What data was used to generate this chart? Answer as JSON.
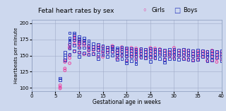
{
  "title": "Fetal heart rates by sex",
  "legend_girls": "Girls",
  "legend_boys": "Boys",
  "xlabel": "Gestational age in weeks",
  "ylabel": "Heartbeats per minute",
  "xlim": [
    0,
    40
  ],
  "ylim": [
    95,
    205
  ],
  "xticks": [
    0,
    5,
    10,
    15,
    20,
    25,
    30,
    35,
    40
  ],
  "yticks": [
    100,
    125,
    150,
    175,
    200
  ],
  "bg_color": "#cdd8ee",
  "grid_color": "#a0aac8",
  "girls_color": "#ee3399",
  "boys_color": "#2233bb",
  "girls_x": [
    6,
    6,
    6,
    7,
    7,
    7,
    7,
    8,
    8,
    8,
    8,
    8,
    8,
    9,
    9,
    9,
    9,
    9,
    10,
    10,
    10,
    10,
    10,
    10,
    11,
    11,
    11,
    11,
    12,
    12,
    12,
    12,
    13,
    13,
    13,
    14,
    14,
    14,
    14,
    15,
    15,
    15,
    15,
    16,
    16,
    16,
    17,
    17,
    17,
    18,
    18,
    18,
    18,
    19,
    19,
    19,
    19,
    20,
    20,
    20,
    20,
    20,
    21,
    21,
    21,
    21,
    22,
    22,
    22,
    22,
    22,
    23,
    23,
    23,
    23,
    24,
    24,
    24,
    24,
    25,
    25,
    25,
    25,
    26,
    26,
    26,
    26,
    27,
    27,
    27,
    28,
    28,
    28,
    28,
    29,
    29,
    29,
    30,
    30,
    30,
    30,
    31,
    31,
    31,
    32,
    32,
    32,
    32,
    33,
    33,
    33,
    33,
    34,
    34,
    34,
    34,
    35,
    35,
    35,
    35,
    36,
    36,
    36,
    37,
    37,
    37,
    37,
    38,
    38,
    38,
    38,
    39,
    39,
    39,
    39,
    40,
    40,
    40
  ],
  "girls_y": [
    104,
    101,
    99,
    143,
    140,
    130,
    127,
    167,
    163,
    161,
    150,
    146,
    138,
    179,
    176,
    173,
    168,
    156,
    175,
    172,
    170,
    167,
    163,
    155,
    172,
    168,
    165,
    152,
    165,
    162,
    157,
    151,
    163,
    158,
    152,
    165,
    162,
    158,
    148,
    163,
    157,
    154,
    148,
    162,
    158,
    154,
    165,
    162,
    156,
    158,
    154,
    150,
    145,
    163,
    160,
    156,
    150,
    160,
    157,
    153,
    149,
    143,
    162,
    158,
    153,
    149,
    161,
    158,
    154,
    149,
    144,
    160,
    157,
    153,
    148,
    159,
    155,
    151,
    146,
    162,
    158,
    153,
    147,
    161,
    157,
    152,
    146,
    160,
    156,
    151,
    157,
    153,
    149,
    143,
    156,
    152,
    148,
    162,
    157,
    152,
    146,
    158,
    154,
    149,
    159,
    155,
    150,
    145,
    158,
    154,
    149,
    143,
    157,
    153,
    148,
    143,
    156,
    152,
    147,
    143,
    157,
    153,
    148,
    156,
    152,
    147,
    142,
    158,
    154,
    149,
    143,
    155,
    150,
    145,
    140,
    155,
    150,
    144
  ],
  "boys_x": [
    6,
    6,
    7,
    7,
    7,
    7,
    8,
    8,
    8,
    8,
    8,
    8,
    8,
    9,
    9,
    9,
    9,
    9,
    9,
    10,
    10,
    10,
    10,
    10,
    10,
    10,
    11,
    11,
    11,
    11,
    11,
    12,
    12,
    12,
    12,
    12,
    13,
    13,
    13,
    13,
    14,
    14,
    14,
    14,
    14,
    15,
    15,
    15,
    15,
    16,
    16,
    16,
    16,
    17,
    17,
    17,
    17,
    18,
    18,
    18,
    18,
    18,
    19,
    19,
    19,
    19,
    19,
    20,
    20,
    20,
    20,
    20,
    20,
    21,
    21,
    21,
    21,
    21,
    22,
    22,
    22,
    22,
    22,
    22,
    23,
    23,
    23,
    23,
    24,
    24,
    24,
    24,
    25,
    25,
    25,
    25,
    25,
    26,
    26,
    26,
    26,
    27,
    27,
    27,
    27,
    28,
    28,
    28,
    28,
    28,
    29,
    29,
    29,
    29,
    30,
    30,
    30,
    30,
    31,
    31,
    31,
    31,
    32,
    32,
    32,
    32,
    33,
    33,
    33,
    33,
    34,
    34,
    34,
    34,
    35,
    35,
    35,
    35,
    36,
    36,
    36,
    37,
    37,
    37,
    37,
    38,
    38,
    38,
    38,
    39,
    39,
    39,
    40,
    40,
    40,
    40
  ],
  "boys_y": [
    115,
    112,
    155,
    151,
    147,
    143,
    185,
    177,
    174,
    171,
    167,
    161,
    152,
    185,
    182,
    178,
    174,
    166,
    157,
    179,
    176,
    173,
    169,
    162,
    155,
    148,
    177,
    174,
    169,
    162,
    154,
    173,
    169,
    165,
    159,
    152,
    168,
    164,
    160,
    153,
    167,
    163,
    158,
    152,
    145,
    165,
    161,
    157,
    151,
    163,
    159,
    155,
    148,
    164,
    161,
    156,
    150,
    162,
    159,
    155,
    150,
    144,
    163,
    160,
    156,
    151,
    145,
    162,
    158,
    154,
    149,
    143,
    138,
    161,
    157,
    153,
    148,
    142,
    160,
    156,
    153,
    148,
    142,
    137,
    161,
    157,
    153,
    147,
    160,
    156,
    152,
    146,
    161,
    157,
    153,
    147,
    141,
    160,
    156,
    152,
    146,
    159,
    155,
    151,
    145,
    158,
    154,
    150,
    144,
    139,
    159,
    155,
    151,
    145,
    160,
    156,
    151,
    145,
    158,
    154,
    150,
    144,
    159,
    155,
    151,
    145,
    158,
    154,
    150,
    144,
    157,
    153,
    149,
    143,
    158,
    154,
    150,
    144,
    157,
    153,
    148,
    156,
    152,
    148,
    142,
    157,
    153,
    148,
    143,
    156,
    152,
    147,
    157,
    153,
    148,
    142
  ]
}
